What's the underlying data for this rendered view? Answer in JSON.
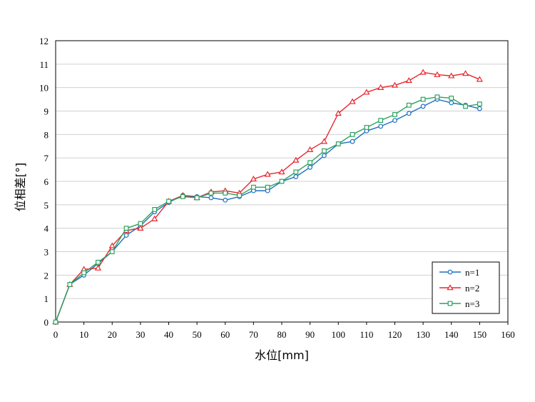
{
  "chart_data": {
    "type": "line",
    "title": "",
    "xlabel": "水位[mm]",
    "ylabel": "位相差[°]",
    "xlim": [
      0,
      160
    ],
    "ylim": [
      0,
      12
    ],
    "xticks": [
      0,
      10,
      20,
      30,
      40,
      50,
      60,
      70,
      80,
      90,
      100,
      110,
      120,
      130,
      140,
      150,
      160
    ],
    "yticks": [
      0,
      1,
      2,
      3,
      4,
      5,
      6,
      7,
      8,
      9,
      10,
      11,
      12
    ],
    "grid": "y-major",
    "legend_position": "bottom-right",
    "x": [
      0,
      5,
      10,
      15,
      20,
      25,
      30,
      35,
      40,
      45,
      50,
      55,
      60,
      65,
      70,
      75,
      80,
      85,
      90,
      95,
      100,
      105,
      110,
      115,
      120,
      125,
      130,
      135,
      140,
      145,
      150
    ],
    "series": [
      {
        "name": "n=1",
        "color": "#1f6fbf",
        "marker": "circle",
        "values": [
          0,
          1.6,
          2.0,
          2.5,
          3.0,
          3.7,
          4.1,
          4.7,
          5.1,
          5.4,
          5.35,
          5.3,
          5.2,
          5.35,
          5.6,
          5.6,
          6.0,
          6.2,
          6.6,
          7.1,
          7.6,
          7.7,
          8.15,
          8.35,
          8.6,
          8.9,
          9.2,
          9.5,
          9.35,
          9.25,
          9.1
        ]
      },
      {
        "name": "n=2",
        "color": "#e8262d",
        "marker": "triangle",
        "values": [
          0,
          1.6,
          2.25,
          2.3,
          3.25,
          3.9,
          4.0,
          4.4,
          5.15,
          5.4,
          5.3,
          5.55,
          5.6,
          5.5,
          6.1,
          6.3,
          6.4,
          6.9,
          7.35,
          7.7,
          8.9,
          9.4,
          9.8,
          10.0,
          10.1,
          10.3,
          10.65,
          10.55,
          10.5,
          10.6,
          10.35
        ]
      },
      {
        "name": "n=3",
        "color": "#2ca25f",
        "marker": "square",
        "values": [
          0,
          1.6,
          2.1,
          2.55,
          3.0,
          4.0,
          4.2,
          4.8,
          5.15,
          5.35,
          5.3,
          5.5,
          5.5,
          5.4,
          5.75,
          5.75,
          6.0,
          6.4,
          6.8,
          7.3,
          7.6,
          8.0,
          8.3,
          8.6,
          8.85,
          9.25,
          9.5,
          9.6,
          9.55,
          9.2,
          9.3
        ]
      }
    ]
  }
}
